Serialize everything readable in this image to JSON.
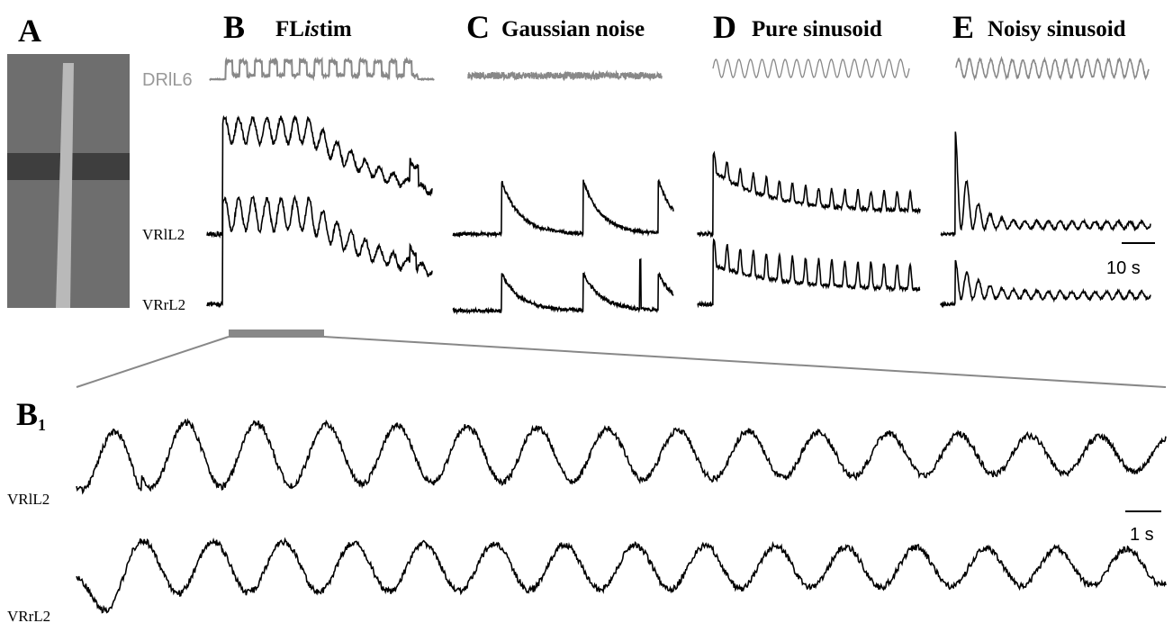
{
  "panel_a": {
    "letter": "A"
  },
  "panel_b": {
    "letter": "B",
    "title": {
      "bold": "FL",
      "italic": "is",
      "rest": "tim"
    }
  },
  "panel_c": {
    "letter": "C",
    "title": "Gaussian noise"
  },
  "panel_d": {
    "letter": "D",
    "title": "Pure sinusoid"
  },
  "panel_e": {
    "letter": "E",
    "title": "Noisy sinusoid"
  },
  "traces": {
    "stim": "DRlL6",
    "top": "VRlL2",
    "bottom": "VRrL2"
  },
  "scale_bar": "10 s",
  "panel_b1": {
    "letter": "B",
    "subscript": "1",
    "traces": {
      "top": "VRlL2",
      "bottom": "VRrL2"
    },
    "scale_bar": "1 s"
  }
}
